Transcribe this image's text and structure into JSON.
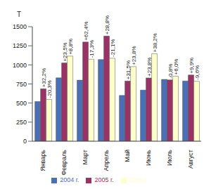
{
  "chart_data": {
    "type": "bar",
    "y_label": "Т",
    "categories": [
      "Январь",
      "Февраль",
      "Март",
      "Апрель",
      "Май",
      "Июнь",
      "Июль",
      "Август"
    ],
    "series": [
      {
        "name": "2004 г.",
        "color": "#4a6fb5",
        "values": [
          520,
          830,
          800,
          1070,
          600,
          670,
          810,
          790
        ]
      },
      {
        "name": "2005 г.",
        "color": "#993366",
        "values": [
          687,
          1025,
          1299,
          1378,
          789,
          829,
          804,
          868
        ],
        "labels": [
          "+32,2%",
          "+23,5%",
          "+62,4%",
          "+28,8%",
          "+31,5%",
          "+23,8%",
          "-0,8%",
          "+9,9%"
        ]
      },
      {
        "name": "2006 г.",
        "color": "#ffffcc",
        "values": [
          548,
          1115,
          1074,
          1087,
          977,
          1146,
          852,
          785
        ],
        "labels": [
          "-20,3%",
          "+8,8%",
          "-17,3%",
          "-21,1%",
          "+23,8%",
          "+38,2%",
          "+6,0%",
          "-9,6%"
        ]
      }
    ],
    "ylim": [
      0,
      1500
    ],
    "yticks": [
      0,
      250,
      500,
      750,
      1000,
      1250,
      1500
    ],
    "grid": false,
    "legend": "bottom"
  }
}
